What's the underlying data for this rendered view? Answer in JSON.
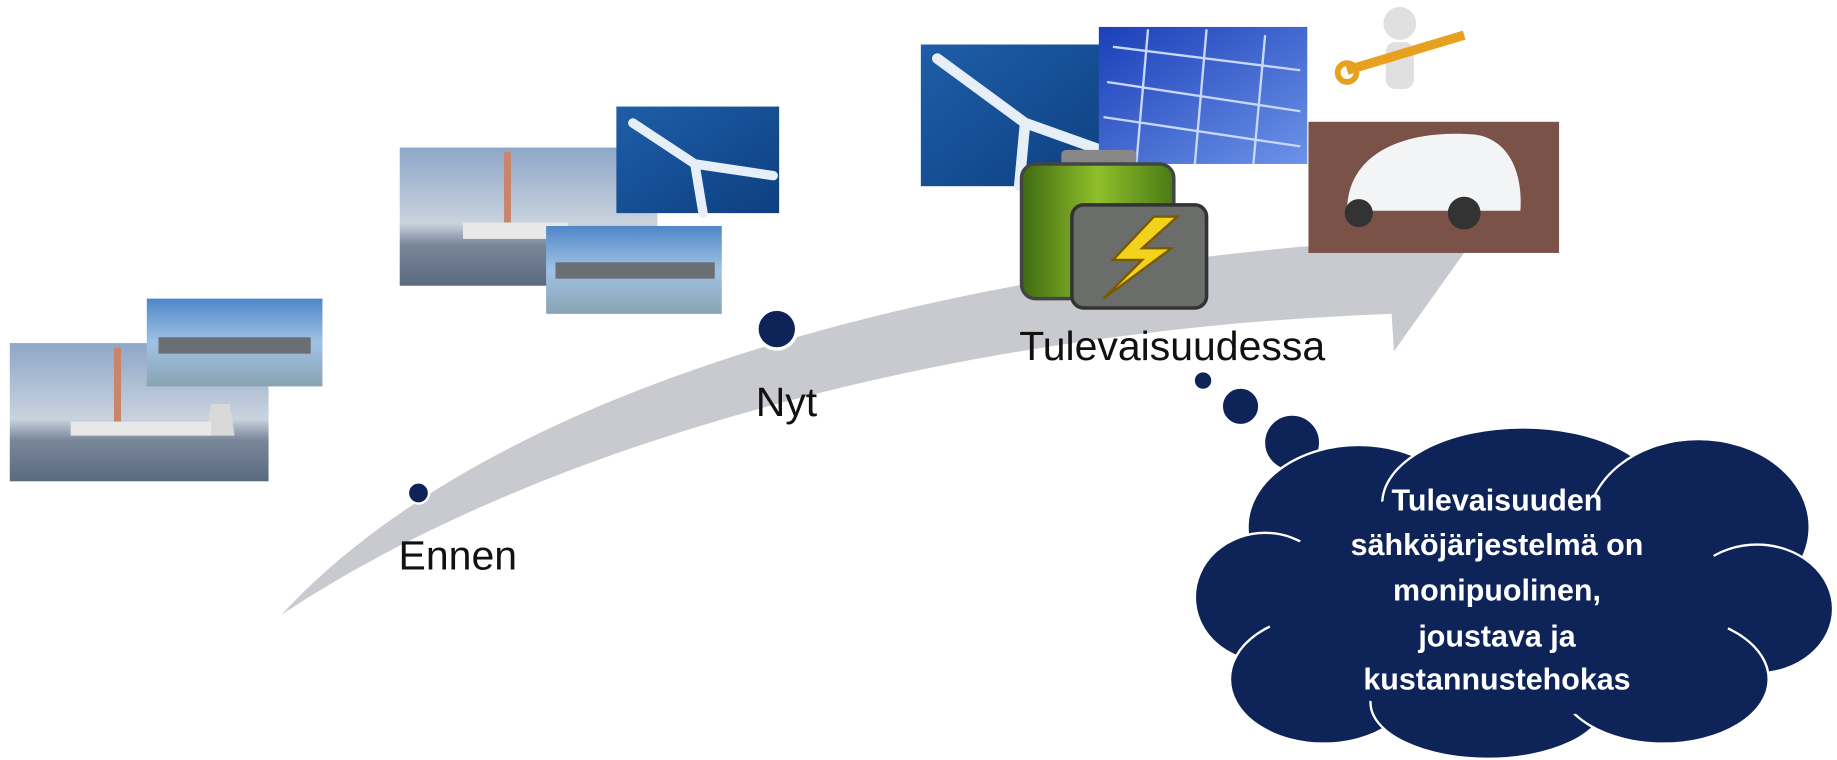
{
  "stages": [
    {
      "label": "Ennen"
    },
    {
      "label": "Nyt"
    },
    {
      "label": "Tulevaisuudessa"
    }
  ],
  "cloud": {
    "lines": [
      "Tulevaisuuden",
      "sähköjärjestelmä on",
      "monipuolinen,",
      "joustava ja",
      "kustannustehokas"
    ]
  }
}
